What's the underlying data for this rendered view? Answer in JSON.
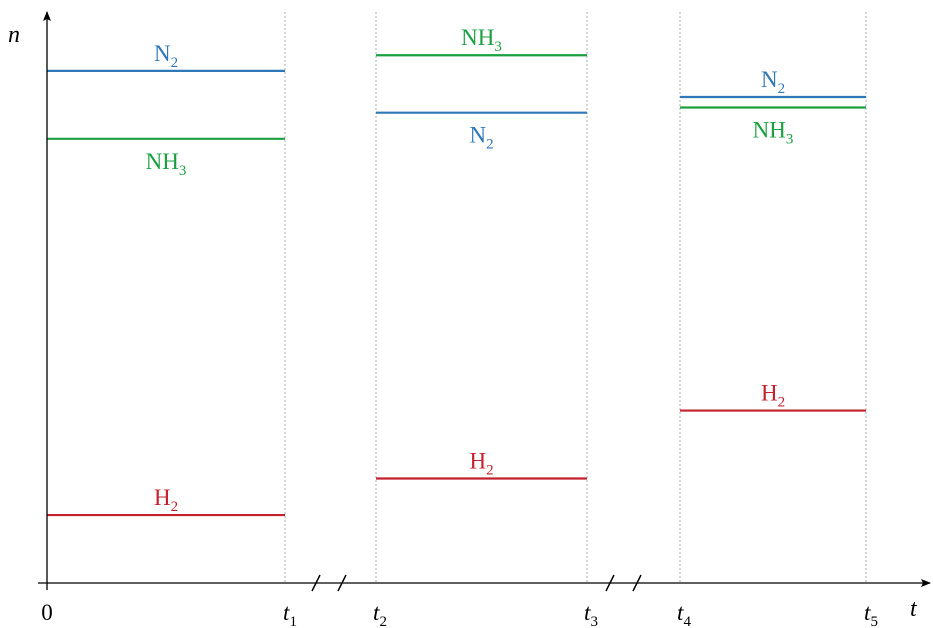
{
  "chart_data": {
    "type": "line",
    "xlabel": "t",
    "ylabel": "n",
    "x_ticks": [
      {
        "main": "0",
        "sub": ""
      },
      {
        "main": "t",
        "sub": "1"
      },
      {
        "main": "t",
        "sub": "2"
      },
      {
        "main": "t",
        "sub": "3"
      },
      {
        "main": "t",
        "sub": "4"
      },
      {
        "main": "t",
        "sub": "5"
      }
    ],
    "ylim": [
      0,
      10
    ],
    "axis_breaks": [
      "between t1 and t2",
      "between t3 and t4"
    ],
    "segments": [
      {
        "interval": "0 to t1",
        "series": [
          {
            "name": "N",
            "sub": "2",
            "value": 9.8,
            "color": "#2f78b7",
            "label_pos": "above"
          },
          {
            "name": "NH",
            "sub": "3",
            "value": 8.5,
            "color": "#1aa040",
            "label_pos": "below"
          },
          {
            "name": "H",
            "sub": "2",
            "value": 1.3,
            "color": "#c4202e",
            "label_pos": "above"
          }
        ]
      },
      {
        "interval": "t2 to t3",
        "series": [
          {
            "name": "NH",
            "sub": "3",
            "value": 10.1,
            "color": "#1aa040",
            "label_pos": "above"
          },
          {
            "name": "N",
            "sub": "2",
            "value": 9.0,
            "color": "#2f78b7",
            "label_pos": "below"
          },
          {
            "name": "H",
            "sub": "2",
            "value": 2.0,
            "color": "#c4202e",
            "label_pos": "above"
          }
        ]
      },
      {
        "interval": "t4 to t5",
        "series": [
          {
            "name": "N",
            "sub": "2",
            "value": 9.3,
            "color": "#2f78b7",
            "label_pos": "above"
          },
          {
            "name": "NH",
            "sub": "3",
            "value": 9.1,
            "color": "#1aa040",
            "label_pos": "below"
          },
          {
            "name": "H",
            "sub": "2",
            "value": 3.3,
            "color": "#c4202e",
            "label_pos": "above"
          }
        ]
      }
    ]
  }
}
